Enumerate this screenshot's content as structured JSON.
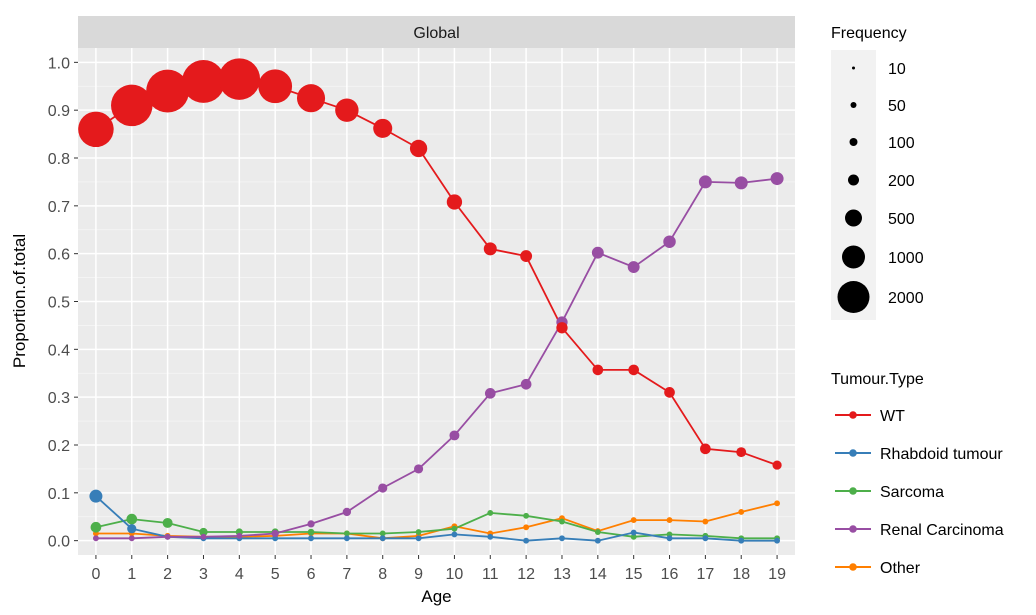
{
  "chart_data": {
    "type": "line",
    "facet_title": "Global",
    "xlabel": "Age",
    "ylabel": "Proportion.of.total",
    "x": [
      0,
      1,
      2,
      3,
      4,
      5,
      6,
      7,
      8,
      9,
      10,
      11,
      12,
      13,
      14,
      15,
      16,
      17,
      18,
      19
    ],
    "xlim": [
      -0.5,
      19.5
    ],
    "ylim": [
      -0.03,
      1.03
    ],
    "x_ticks": [
      "0",
      "1",
      "2",
      "3",
      "4",
      "5",
      "6",
      "7",
      "8",
      "9",
      "10",
      "11",
      "12",
      "13",
      "14",
      "15",
      "16",
      "17",
      "18",
      "19"
    ],
    "y_ticks": [
      "0.0",
      "0.1",
      "0.2",
      "0.3",
      "0.4",
      "0.5",
      "0.6",
      "0.7",
      "0.8",
      "0.9",
      "1.0"
    ],
    "grid": true,
    "legend_position": "right",
    "size_legend": {
      "title": "Frequency",
      "entries": [
        "10",
        "50",
        "100",
        "200",
        "500",
        "1000",
        "2000"
      ]
    },
    "color_legend": {
      "title": "Tumour.Type"
    },
    "series": [
      {
        "name": "WT",
        "color": "#e41a1c",
        "values": [
          0.86,
          0.91,
          0.94,
          0.96,
          0.965,
          0.95,
          0.925,
          0.9,
          0.862,
          0.82,
          0.708,
          0.61,
          0.595,
          0.445,
          0.357,
          0.357,
          0.31,
          0.192,
          0.185,
          0.158
        ],
        "frequency": [
          1000,
          1400,
          1500,
          1500,
          1400,
          900,
          600,
          400,
          250,
          200,
          150,
          100,
          80,
          70,
          60,
          60,
          60,
          60,
          50,
          40
        ]
      },
      {
        "name": "Rhabdoid tumour",
        "color": "#377eb8",
        "values": [
          0.093,
          0.025,
          0.008,
          0.005,
          0.005,
          0.005,
          0.005,
          0.005,
          0.005,
          0.005,
          0.013,
          0.008,
          0.0,
          0.005,
          0.0,
          0.017,
          0.005,
          0.005,
          0.0,
          0.0
        ],
        "frequency": [
          100,
          40,
          10,
          10,
          10,
          10,
          10,
          10,
          10,
          10,
          10,
          10,
          10,
          10,
          10,
          10,
          10,
          10,
          10,
          10
        ]
      },
      {
        "name": "Sarcoma",
        "color": "#4daf4a",
        "values": [
          0.028,
          0.045,
          0.037,
          0.018,
          0.018,
          0.018,
          0.018,
          0.015,
          0.015,
          0.018,
          0.025,
          0.058,
          0.052,
          0.04,
          0.018,
          0.008,
          0.013,
          0.01,
          0.005,
          0.005
        ],
        "frequency": [
          60,
          60,
          50,
          30,
          20,
          20,
          15,
          10,
          10,
          10,
          10,
          10,
          10,
          10,
          10,
          10,
          10,
          10,
          10,
          10
        ]
      },
      {
        "name": "Renal Carcinoma",
        "color": "#984ea3",
        "values": [
          0.005,
          0.005,
          0.008,
          0.008,
          0.01,
          0.015,
          0.035,
          0.06,
          0.11,
          0.15,
          0.22,
          0.308,
          0.327,
          0.457,
          0.602,
          0.572,
          0.625,
          0.75,
          0.748,
          0.757
        ],
        "frequency": [
          10,
          10,
          10,
          10,
          10,
          20,
          20,
          30,
          40,
          40,
          50,
          60,
          60,
          70,
          80,
          80,
          90,
          100,
          100,
          100
        ]
      },
      {
        "name": "Other",
        "color": "#ff7f00",
        "values": [
          0.015,
          0.015,
          0.01,
          0.008,
          0.008,
          0.01,
          0.015,
          0.015,
          0.005,
          0.01,
          0.03,
          0.015,
          0.028,
          0.047,
          0.02,
          0.043,
          0.043,
          0.04,
          0.06,
          0.078
        ],
        "frequency": [
          10,
          10,
          10,
          10,
          10,
          10,
          10,
          10,
          10,
          10,
          10,
          10,
          10,
          10,
          10,
          10,
          10,
          10,
          10,
          10
        ]
      }
    ]
  }
}
